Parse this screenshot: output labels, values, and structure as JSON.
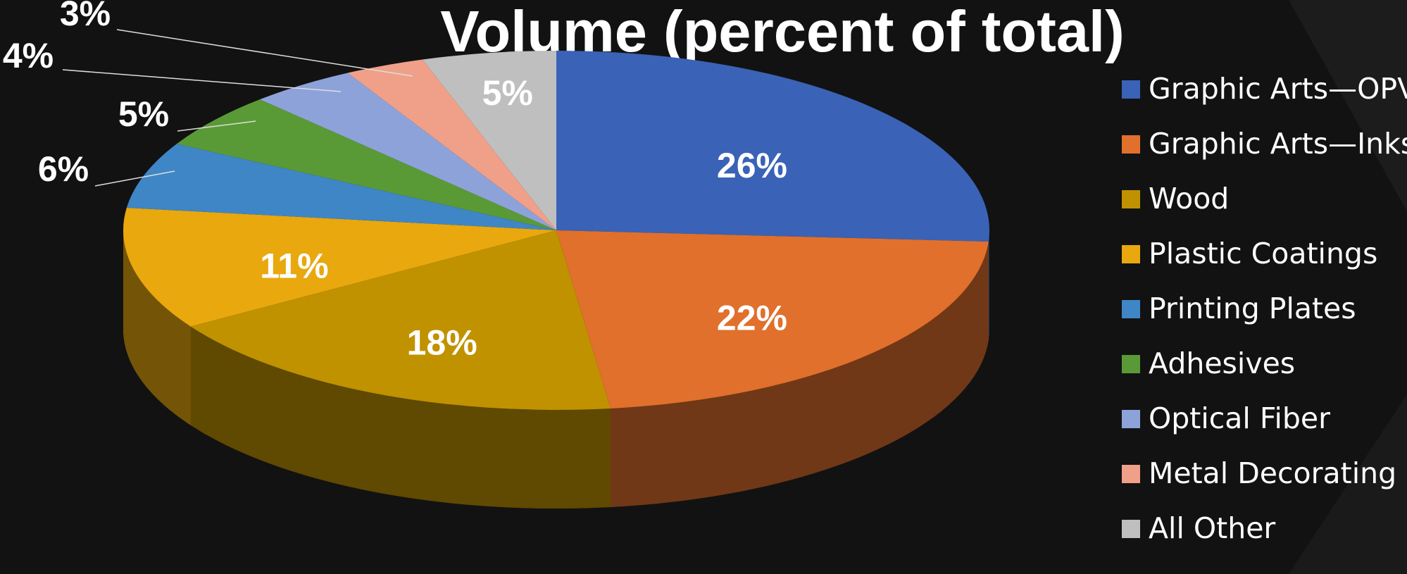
{
  "chart_data": {
    "type": "pie",
    "title": "Volume (percent of total)",
    "categories": [
      "Graphic Arts—OPV",
      "Graphic Arts—Inks",
      "Wood",
      "Plastic Coatings",
      "Printing Plates",
      "Adhesives",
      "Optical Fiber",
      "Metal Decorating",
      "All Other"
    ],
    "values": [
      26,
      22,
      18,
      11,
      6,
      5,
      4,
      3,
      5
    ],
    "value_labels": [
      "26%",
      "22%",
      "18%",
      "11%",
      "6%",
      "5%",
      "4%",
      "3%",
      "5%"
    ],
    "colors": [
      "#3a62b6",
      "#e0702c",
      "#c09200",
      "#e8a80e",
      "#3f86c6",
      "#5a9a36",
      "#8ea2da",
      "#f0a088",
      "#bfbfbf"
    ],
    "legend": "right"
  }
}
